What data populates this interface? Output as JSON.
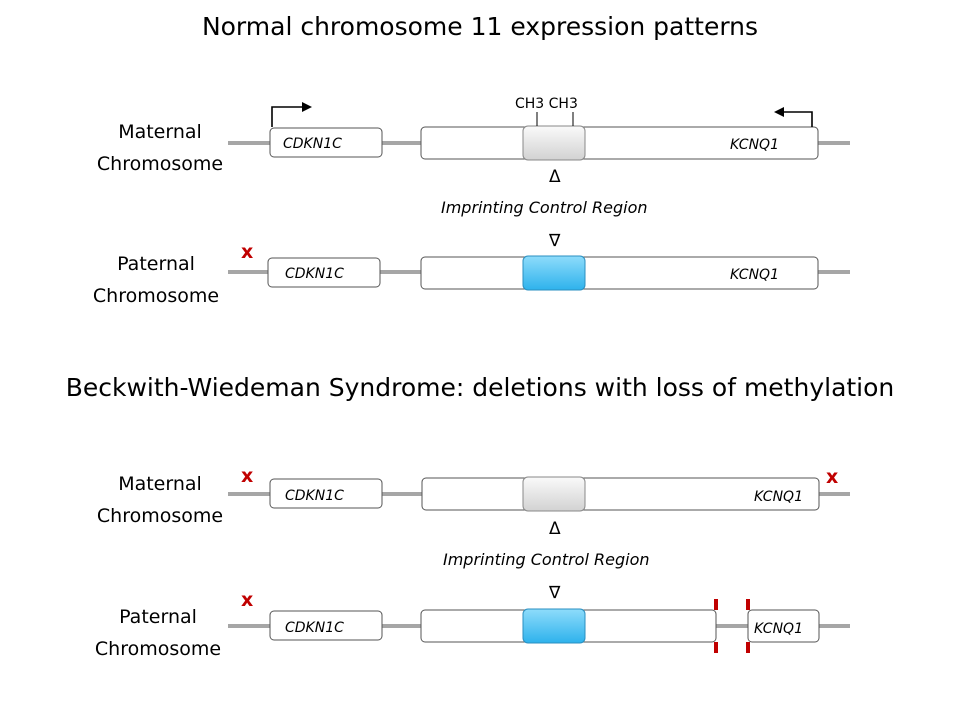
{
  "colors": {
    "line": "#a6a6a6",
    "methylated_icr": "#e3e3e3",
    "unmethylated_icr": "#4fc3f7",
    "silenced_mark": "#c00000"
  },
  "normal_section": {
    "title": "Normal chromosome 11 expression patterns",
    "maternal": {
      "label_line1": "Maternal",
      "label_line2": "Chromosome",
      "gene_left": "CDKN1C",
      "gene_right": "KCNQ1",
      "methyl_label": "CH3 CH3",
      "icr_state": "methylated",
      "left_expressed": true,
      "right_expressed": true
    },
    "icr_label": "Imprinting Control Region",
    "paternal": {
      "label_line1": "Paternal",
      "label_line2": "Chromosome",
      "gene_left": "CDKN1C",
      "gene_right": "KCNQ1",
      "silenced_mark": "x",
      "icr_state": "unmethylated"
    }
  },
  "bws_section": {
    "title": "Beckwith-Wiedeman Syndrome: deletions with loss of methylation",
    "maternal": {
      "label_line1": "Maternal",
      "label_line2": "Chromosome",
      "gene_left": "CDKN1C",
      "gene_right": "KCNQ1",
      "silenced_mark_left": "x",
      "silenced_mark_right": "x",
      "icr_state": "methylated"
    },
    "icr_label": "Imprinting Control Region",
    "paternal": {
      "label_line1": "Paternal",
      "label_line2": "Chromosome",
      "gene_left": "CDKN1C",
      "gene_right": "KCNQ1",
      "silenced_mark": "x",
      "icr_state": "unmethylated",
      "deletion": true
    }
  },
  "triangle_up": "Δ",
  "triangle_down": "∇"
}
